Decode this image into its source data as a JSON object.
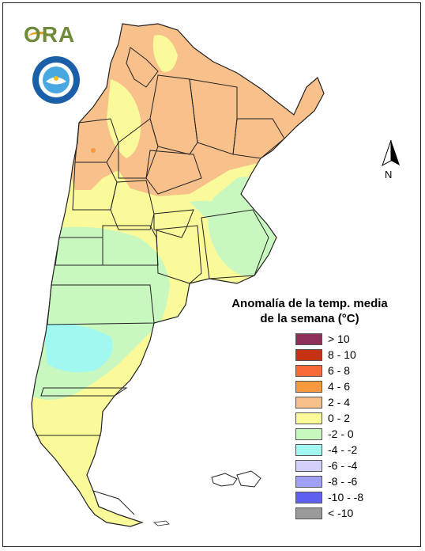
{
  "logo": {
    "text": "ORA"
  },
  "north": {
    "label": "N"
  },
  "legend": {
    "title_line1": "Anomalía de la temp. media",
    "title_line2": "de la semana (°C)",
    "items": [
      {
        "label": "> 10",
        "color": "#8e2f5a"
      },
      {
        "label": "8 - 10",
        "color": "#c83214"
      },
      {
        "label": "6 - 8",
        "color": "#fa6a38"
      },
      {
        "label": "4 - 6",
        "color": "#f79a3e"
      },
      {
        "label": "2 - 4",
        "color": "#f8c08a"
      },
      {
        "label": "0 - 2",
        "color": "#fafa9a"
      },
      {
        "label": "-2 - 0",
        "color": "#c8f8c0"
      },
      {
        "label": "-4 - -2",
        "color": "#a0f8f0"
      },
      {
        "label": "-6 - -4",
        "color": "#d0d0f8"
      },
      {
        "label": "-8 - -6",
        "color": "#a0a0f8"
      },
      {
        "label": "-10 - -8",
        "color": "#6060f0"
      },
      {
        "label": "< -10",
        "color": "#9a9a9a"
      }
    ]
  }
}
